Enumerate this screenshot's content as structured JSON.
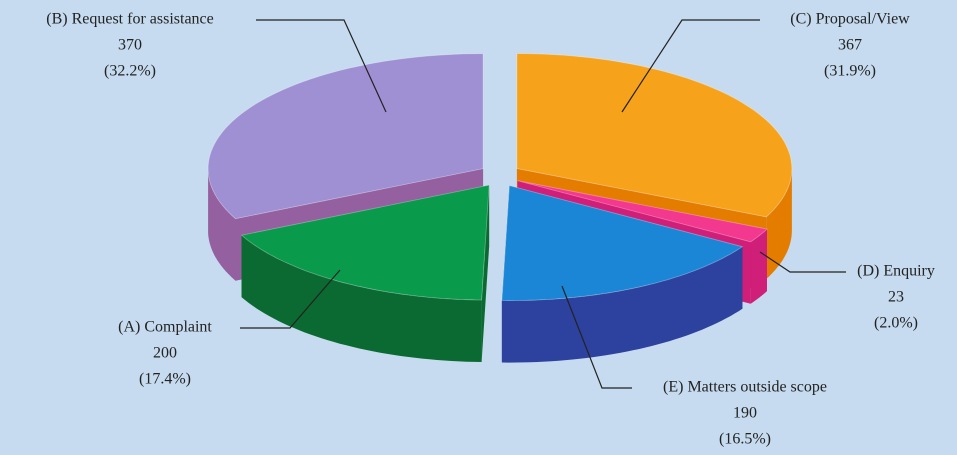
{
  "chart_data": {
    "type": "pie3d",
    "categories": [
      "(C) Proposal/View",
      "(D) Enquiry",
      "(E) Matters outside scope",
      "(A) Complaint",
      "(B) Request for assistance"
    ],
    "values": [
      367,
      23,
      190,
      200,
      370
    ],
    "percent_labels": [
      "(31.9%)",
      "(2.0%)",
      "(16.5%)",
      "(17.4%)",
      "(32.2%)"
    ],
    "colors": [
      "#f7a21b",
      "#f2388f",
      "#1b86d6",
      "#0a9a4c",
      "#9f8fd3"
    ],
    "side_colors": [
      "#e47c00",
      "#d01f78",
      "#2d429f",
      "#0b6a31",
      "#94609f"
    ]
  }
}
